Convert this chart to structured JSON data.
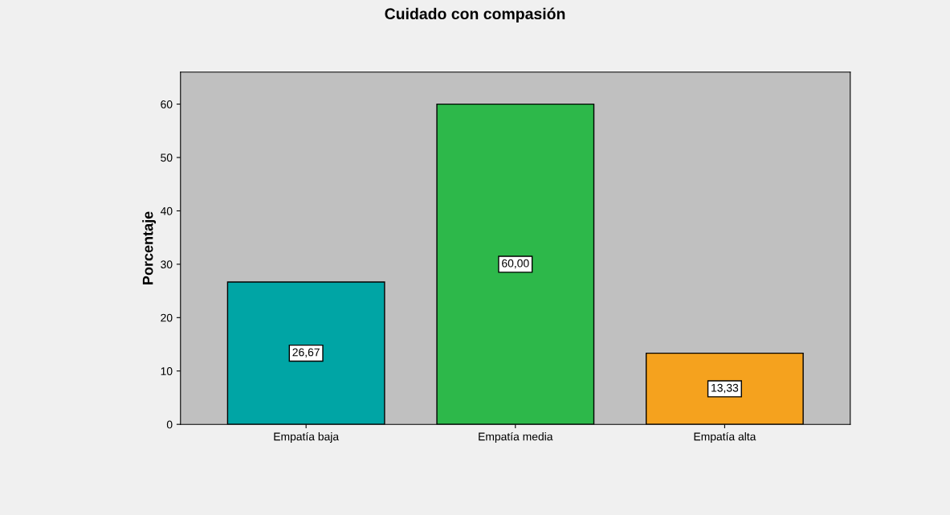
{
  "chart_data": {
    "type": "bar",
    "title": "Cuidado con compasión",
    "ylabel": "Porcentaje",
    "categories": [
      "Empatía baja",
      "Empatía media",
      "Empatía alta"
    ],
    "values": [
      26.67,
      60.0,
      13.33
    ],
    "colors": [
      "#00a5a5",
      "#2db84a",
      "#f5a21e"
    ],
    "value_labels": [
      "26,67",
      "60,00",
      "13,33"
    ],
    "ylim": [
      0,
      66
    ],
    "yticks": [
      0,
      10,
      20,
      30,
      40,
      50,
      60
    ],
    "grid": false
  }
}
